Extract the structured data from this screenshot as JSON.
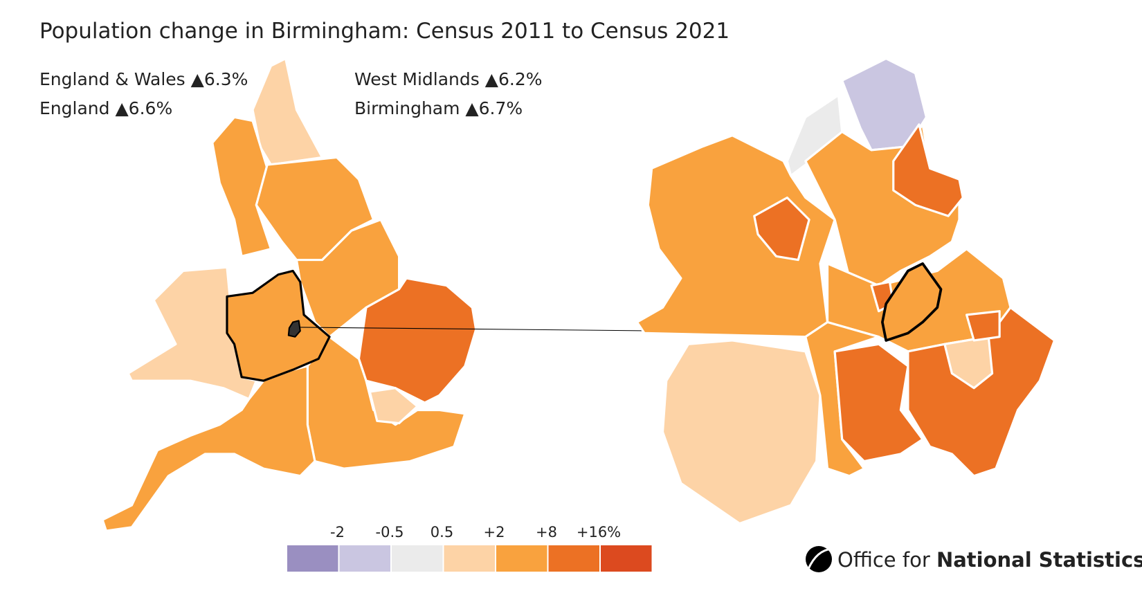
{
  "title": "Population change in Birmingham: Census 2011 to Census 2021",
  "stats": [
    {
      "label": "England & Wales",
      "value": "▲6.3%"
    },
    {
      "label": "England",
      "value": "▲6.6%"
    },
    {
      "label": "West Midlands",
      "value": "▲6.2%"
    },
    {
      "label": "Birmingham",
      "value": "▲6.7%"
    }
  ],
  "legend": {
    "colors": [
      "#9a8fc1",
      "#cac6e1",
      "#ebebeb",
      "#fdd3a6",
      "#f9a23e",
      "#ec7124",
      "#dc4a1f"
    ],
    "labels": [
      "-2",
      "-0.5",
      "0.5",
      "+2",
      "+8",
      "+16%"
    ]
  },
  "logo": {
    "light": "Office for",
    "bold": "National Statistics"
  }
}
